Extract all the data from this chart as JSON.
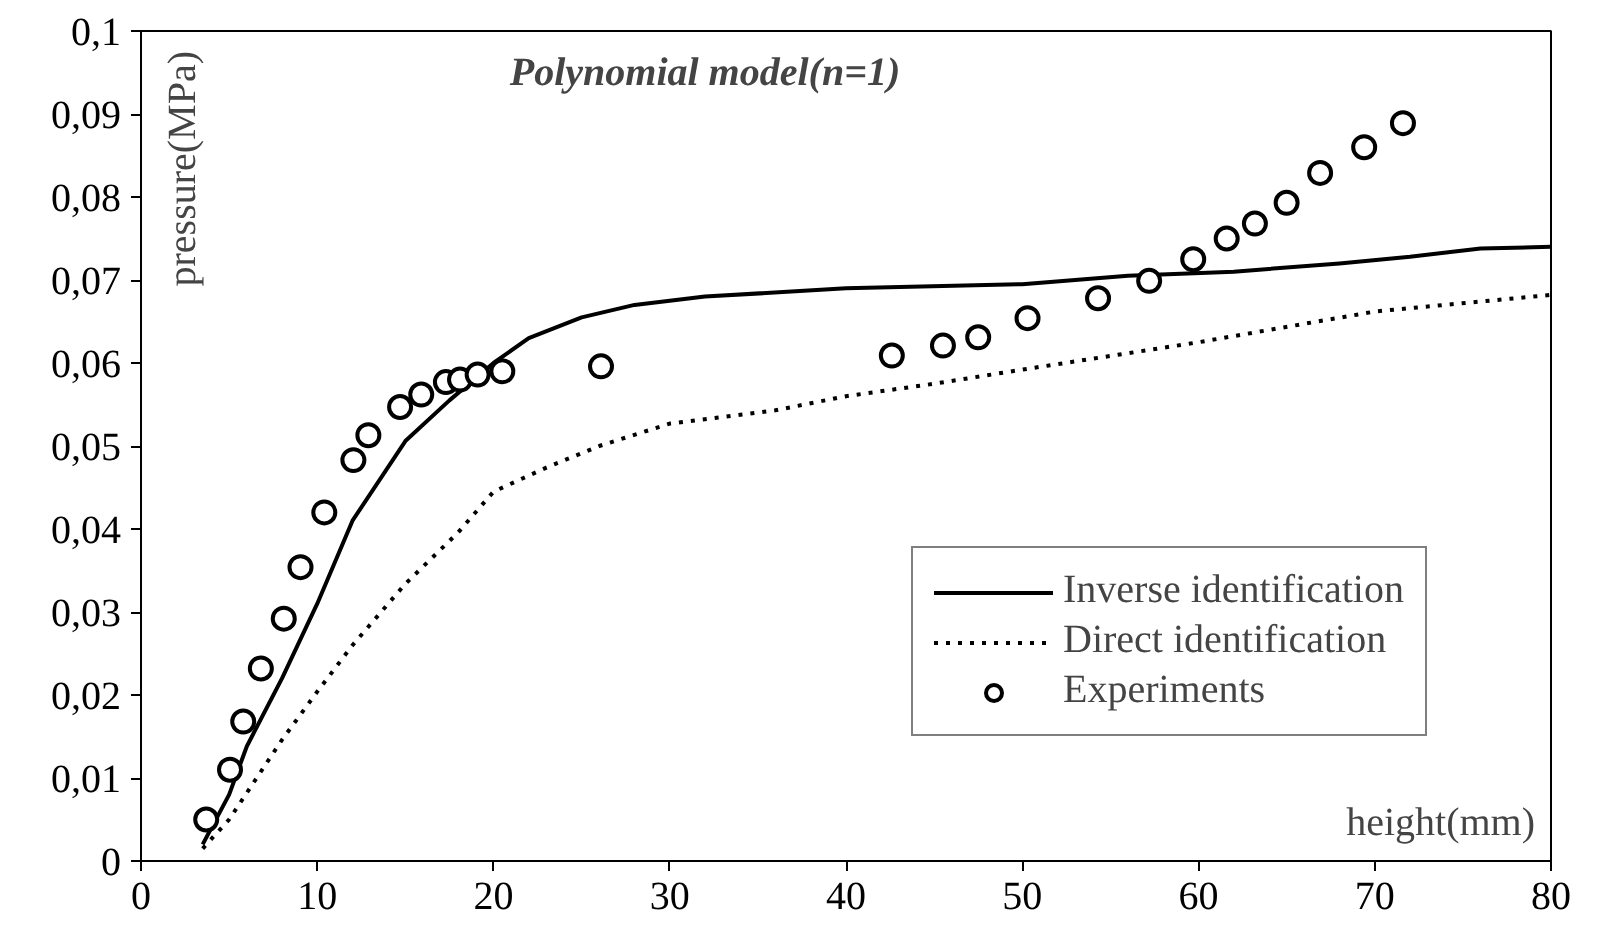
{
  "chart_data": {
    "type": "line",
    "title": "Polynomial model(n=1)",
    "xlabel": "height(mm)",
    "ylabel": "pressure(MPa)",
    "xlim": [
      0,
      80
    ],
    "ylim": [
      0,
      0.1
    ],
    "xticks": [
      0,
      10,
      20,
      30,
      40,
      50,
      60,
      70,
      80
    ],
    "yticks": [
      0,
      {
        "value": 0.01,
        "label": "0,01"
      },
      {
        "value": 0.02,
        "label": "0,02"
      },
      {
        "value": 0.03,
        "label": "0,03"
      },
      {
        "value": 0.04,
        "label": "0,04"
      },
      {
        "value": 0.05,
        "label": "0,05"
      },
      {
        "value": 0.06,
        "label": "0,06"
      },
      {
        "value": 0.07,
        "label": "0,07"
      },
      {
        "value": 0.08,
        "label": "0,08"
      },
      {
        "value": 0.09,
        "label": "0,09"
      },
      {
        "value": 0.1,
        "label": "0,1"
      }
    ],
    "grid": false,
    "legend": "bottom right",
    "series": [
      {
        "name": "Inverse identification",
        "line_style": "solid",
        "color": "#000000",
        "x": [
          3.5,
          5,
          6,
          8,
          10,
          12,
          15,
          17.5,
          20,
          22,
          25,
          28,
          32,
          40,
          50,
          56,
          62,
          68,
          72,
          76,
          80
        ],
        "values": [
          0.002,
          0.008,
          0.0138,
          0.022,
          0.031,
          0.041,
          0.0506,
          0.0555,
          0.06,
          0.063,
          0.0655,
          0.067,
          0.068,
          0.069,
          0.0695,
          0.0705,
          0.071,
          0.072,
          0.0728,
          0.0738,
          0.074
        ]
      },
      {
        "name": "Direct identification",
        "line_style": "dotted",
        "color": "#000000",
        "x": [
          3.5,
          5,
          8,
          10,
          12,
          15,
          18,
          20,
          23,
          26,
          30,
          36,
          40,
          45,
          50,
          60,
          70,
          80
        ],
        "values": [
          0.0015,
          0.005,
          0.0146,
          0.0204,
          0.026,
          0.0334,
          0.0396,
          0.0445,
          0.0474,
          0.05,
          0.0527,
          0.0543,
          0.056,
          0.0575,
          0.0592,
          0.0625,
          0.0662,
          0.0682
        ]
      },
      {
        "name": "Experiments",
        "type": "scatter",
        "marker": "circle",
        "color": "#000000",
        "x": [
          3.7,
          5.05,
          5.8,
          6.8,
          8.1,
          9.05,
          10.4,
          12.05,
          12.9,
          14.7,
          15.9,
          17.3,
          18.1,
          19.1,
          20.5,
          26.1,
          42.6,
          45.5,
          47.5,
          50.3,
          54.3,
          57.2,
          59.7,
          61.6,
          63.2,
          65.0,
          66.9,
          69.4,
          71.6
        ],
        "values": [
          0.005,
          0.011,
          0.0168,
          0.0232,
          0.0292,
          0.0354,
          0.042,
          0.0483,
          0.0513,
          0.0547,
          0.0562,
          0.0577,
          0.058,
          0.0586,
          0.059,
          0.0596,
          0.0609,
          0.0621,
          0.0631,
          0.0654,
          0.0678,
          0.0699,
          0.0725,
          0.075,
          0.0768,
          0.0793,
          0.0829,
          0.086,
          0.0889
        ]
      }
    ]
  }
}
